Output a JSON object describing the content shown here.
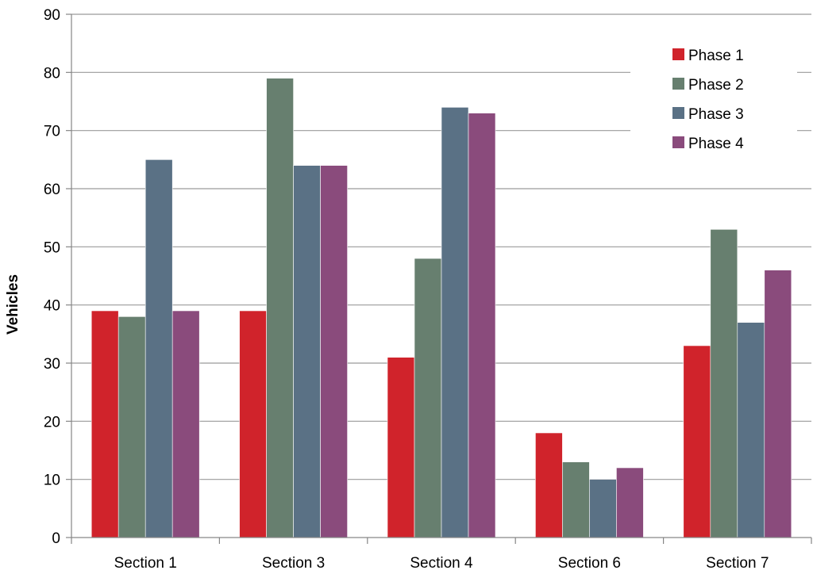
{
  "chart_data": {
    "type": "bar",
    "title": "",
    "xlabel": "",
    "ylabel": "Vehicles",
    "ylim": [
      0,
      90
    ],
    "yticks": [
      0,
      10,
      20,
      30,
      40,
      50,
      60,
      70,
      80,
      90
    ],
    "grid": "horizontal",
    "legend_position": "top-right",
    "categories": [
      "Section 1",
      "Section 3",
      "Section 4",
      "Section 6",
      "Section 7"
    ],
    "series": [
      {
        "name": "Phase 1",
        "color": "#d0232b",
        "values": [
          39,
          39,
          31,
          18,
          33
        ]
      },
      {
        "name": "Phase 2",
        "color": "#677f6f",
        "values": [
          38,
          79,
          48,
          13,
          53
        ]
      },
      {
        "name": "Phase 3",
        "color": "#5a7185",
        "values": [
          65,
          64,
          74,
          10,
          37
        ]
      },
      {
        "name": "Phase 4",
        "color": "#8a4b7c",
        "values": [
          39,
          64,
          73,
          12,
          46
        ]
      }
    ]
  }
}
